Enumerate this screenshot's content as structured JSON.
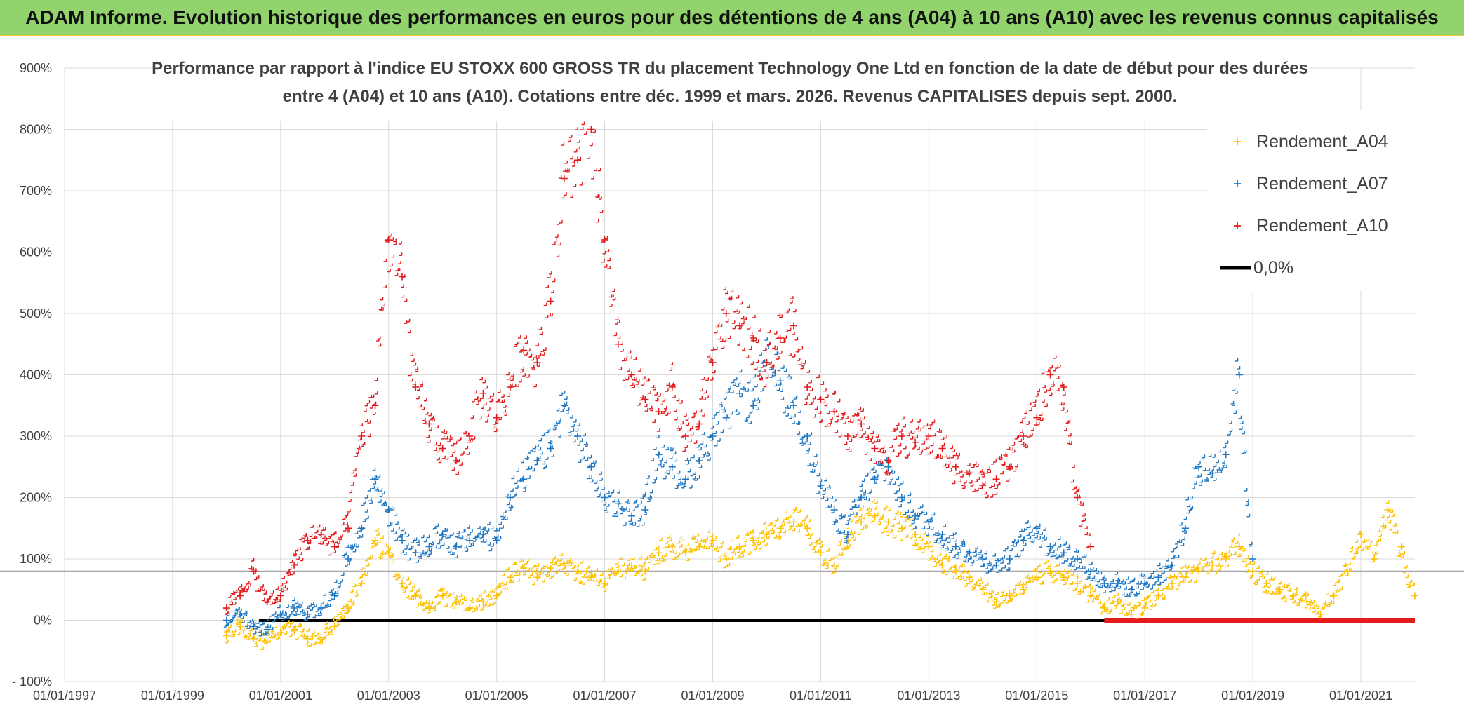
{
  "header": {
    "banner": "ADAM Informe. Evolution historique des performances en euros pour des détentions de 4 ans (A04) à 10 ans (A10) avec les revenus connus capitalisés"
  },
  "chart_data": {
    "type": "scatter",
    "title_line1": "Performance par rapport à l'indice EU STOXX 600 GROSS TR  du placement Technology One Ltd en fonction de la date de début pour des durées",
    "title_line2": "entre 4 (A04) et 10 ans (A10). Cotations entre déc. 1999 et mars. 2026. Revenus CAPITALISES depuis sept. 2000.",
    "x_axis": {
      "min": 1997.0,
      "max": 2022.0,
      "ticks": [
        {
          "value": 1997,
          "label": "01/01/1997"
        },
        {
          "value": 1999,
          "label": "01/01/1999"
        },
        {
          "value": 2001,
          "label": "01/01/2001"
        },
        {
          "value": 2003,
          "label": "01/01/2003"
        },
        {
          "value": 2005,
          "label": "01/01/2005"
        },
        {
          "value": 2007,
          "label": "01/01/2007"
        },
        {
          "value": 2009,
          "label": "01/01/2009"
        },
        {
          "value": 2011,
          "label": "01/01/2011"
        },
        {
          "value": 2013,
          "label": "01/01/2013"
        },
        {
          "value": 2015,
          "label": "01/01/2015"
        },
        {
          "value": 2017,
          "label": "01/01/2017"
        },
        {
          "value": 2019,
          "label": "01/01/2019"
        },
        {
          "value": 2021,
          "label": "01/01/2021"
        }
      ]
    },
    "y_axis": {
      "min": -100,
      "max": 900,
      "ticks": [
        {
          "value": -100,
          "label": "- 100%"
        },
        {
          "value": 0,
          "label": "0%"
        },
        {
          "value": 100,
          "label": "100%"
        },
        {
          "value": 200,
          "label": "200%"
        },
        {
          "value": 300,
          "label": "300%"
        },
        {
          "value": 400,
          "label": "400%"
        },
        {
          "value": 500,
          "label": "500%"
        },
        {
          "value": 600,
          "label": "600%"
        },
        {
          "value": 700,
          "label": "700%"
        },
        {
          "value": 800,
          "label": "800%"
        },
        {
          "value": 900,
          "label": "900%"
        }
      ],
      "reference_line": 80
    },
    "legend": {
      "position": "top-right",
      "entries": [
        "Rendement_A04",
        "Rendement_A07",
        "Rendement_A10",
        "0,0%"
      ]
    },
    "series": [
      {
        "name": "Rendement_A04",
        "color": "#ffc000",
        "x": [
          2000.0,
          2000.25,
          2000.5,
          2000.75,
          2001.0,
          2001.25,
          2001.5,
          2001.75,
          2002.0,
          2002.25,
          2002.5,
          2002.75,
          2003.0,
          2003.25,
          2003.5,
          2003.75,
          2004.0,
          2004.25,
          2004.5,
          2004.75,
          2005.0,
          2005.25,
          2005.5,
          2005.75,
          2006.0,
          2006.25,
          2006.5,
          2006.75,
          2007.0,
          2007.25,
          2007.5,
          2007.75,
          2008.0,
          2008.25,
          2008.5,
          2008.75,
          2009.0,
          2009.25,
          2009.5,
          2009.75,
          2010.0,
          2010.25,
          2010.5,
          2010.75,
          2011.0,
          2011.25,
          2011.5,
          2011.75,
          2012.0,
          2012.25,
          2012.5,
          2012.75,
          2013.0,
          2013.25,
          2013.5,
          2013.75,
          2014.0,
          2014.25,
          2014.5,
          2014.75,
          2015.0,
          2015.25,
          2015.5,
          2015.75,
          2016.0,
          2016.25,
          2016.5,
          2016.75,
          2017.0,
          2017.25,
          2017.5,
          2017.75,
          2018.0,
          2018.25,
          2018.5,
          2018.75,
          2019.0,
          2019.25,
          2019.5,
          2019.75,
          2020.0,
          2020.25,
          2020.5,
          2020.75,
          2021.0,
          2021.25,
          2021.5,
          2021.75,
          2022.0
        ],
        "y": [
          -25,
          -10,
          -30,
          -35,
          -20,
          -15,
          -30,
          -28,
          -10,
          20,
          60,
          130,
          110,
          60,
          40,
          20,
          40,
          30,
          20,
          30,
          40,
          70,
          85,
          70,
          85,
          90,
          80,
          70,
          60,
          80,
          90,
          80,
          110,
          120,
          110,
          120,
          130,
          100,
          120,
          130,
          140,
          150,
          160,
          150,
          110,
          90,
          130,
          160,
          170,
          160,
          150,
          140,
          120,
          90,
          80,
          70,
          50,
          30,
          40,
          50,
          70,
          80,
          70,
          60,
          40,
          20,
          30,
          10,
          20,
          40,
          60,
          70,
          80,
          90,
          100,
          120,
          80,
          60,
          50,
          40,
          30,
          10,
          40,
          80,
          140,
          100,
          180,
          120,
          40
        ]
      },
      {
        "name": "Rendement_A07",
        "color": "#1f77c4",
        "x": [
          2000.0,
          2000.25,
          2000.5,
          2000.75,
          2001.0,
          2001.25,
          2001.5,
          2001.75,
          2002.0,
          2002.25,
          2002.5,
          2002.75,
          2003.0,
          2003.25,
          2003.5,
          2003.75,
          2004.0,
          2004.25,
          2004.5,
          2004.75,
          2005.0,
          2005.25,
          2005.5,
          2005.75,
          2006.0,
          2006.25,
          2006.5,
          2006.75,
          2007.0,
          2007.25,
          2007.5,
          2007.75,
          2008.0,
          2008.25,
          2008.5,
          2008.75,
          2009.0,
          2009.25,
          2009.5,
          2009.75,
          2010.0,
          2010.25,
          2010.5,
          2010.75,
          2011.0,
          2011.25,
          2011.5,
          2011.75,
          2012.0,
          2012.25,
          2012.5,
          2012.75,
          2013.0,
          2013.25,
          2013.5,
          2013.75,
          2014.0,
          2014.25,
          2014.5,
          2014.75,
          2015.0,
          2015.25,
          2015.5,
          2015.75,
          2016.0,
          2016.25,
          2016.5,
          2016.75,
          2017.0,
          2017.25,
          2017.5,
          2017.75,
          2018.0,
          2018.25,
          2018.5,
          2018.75,
          2019.0
        ],
        "y": [
          0,
          10,
          -10,
          -15,
          10,
          20,
          10,
          20,
          40,
          100,
          150,
          230,
          180,
          130,
          110,
          120,
          140,
          120,
          130,
          140,
          130,
          200,
          230,
          260,
          280,
          350,
          300,
          250,
          200,
          190,
          170,
          180,
          270,
          250,
          230,
          260,
          300,
          330,
          370,
          350,
          420,
          390,
          350,
          300,
          220,
          180,
          140,
          200,
          230,
          250,
          200,
          170,
          160,
          140,
          120,
          110,
          100,
          90,
          100,
          130,
          150,
          120,
          110,
          100,
          80,
          60,
          60,
          50,
          60,
          70,
          90,
          150,
          250,
          240,
          270,
          400,
          100
        ]
      },
      {
        "name": "Rendement_A10",
        "color": "#e41a1c",
        "x": [
          2000.0,
          2000.25,
          2000.5,
          2000.75,
          2001.0,
          2001.25,
          2001.5,
          2001.75,
          2002.0,
          2002.25,
          2002.5,
          2002.75,
          2003.0,
          2003.25,
          2003.5,
          2003.75,
          2004.0,
          2004.25,
          2004.5,
          2004.75,
          2005.0,
          2005.25,
          2005.5,
          2005.75,
          2006.0,
          2006.25,
          2006.5,
          2006.75,
          2007.0,
          2007.25,
          2007.5,
          2007.75,
          2008.0,
          2008.25,
          2008.5,
          2008.75,
          2009.0,
          2009.25,
          2009.5,
          2009.75,
          2010.0,
          2010.25,
          2010.5,
          2010.75,
          2011.0,
          2011.25,
          2011.5,
          2011.75,
          2012.0,
          2012.25,
          2012.5,
          2012.75,
          2013.0,
          2013.25,
          2013.5,
          2013.75,
          2014.0,
          2014.25,
          2014.5,
          2014.75,
          2015.0,
          2015.25,
          2015.5,
          2015.75,
          2016.0
        ],
        "y": [
          20,
          40,
          80,
          30,
          40,
          90,
          130,
          140,
          120,
          150,
          300,
          350,
          620,
          560,
          380,
          320,
          280,
          260,
          300,
          370,
          330,
          380,
          440,
          420,
          520,
          720,
          750,
          800,
          620,
          450,
          400,
          360,
          340,
          380,
          300,
          320,
          420,
          500,
          480,
          460,
          420,
          460,
          480,
          380,
          360,
          340,
          300,
          320,
          280,
          260,
          300,
          290,
          300,
          280,
          250,
          240,
          220,
          230,
          250,
          300,
          330,
          400,
          380,
          200,
          120
        ]
      },
      {
        "name": "0,0%",
        "color": "#000000",
        "x": [
          2000.6,
          2016.25
        ],
        "y": [
          0,
          0
        ]
      }
    ],
    "zero_returns": {
      "color": "#e41a1c",
      "x": [
        2016.25,
        2022.0
      ],
      "y": [
        0,
        0
      ]
    }
  }
}
